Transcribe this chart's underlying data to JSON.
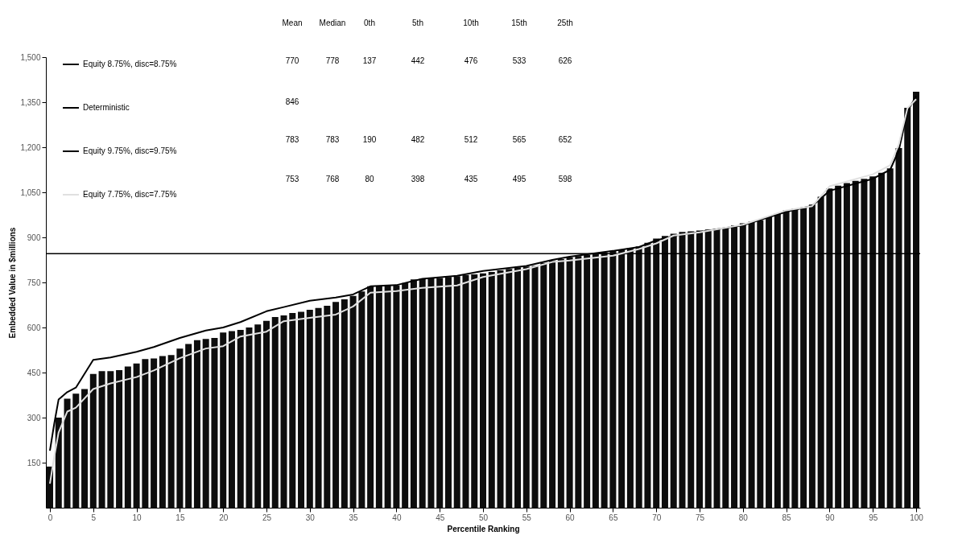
{
  "chart_data": {
    "type": "bar",
    "xlabel": "Percentile Ranking",
    "ylabel": "Embedded Value in $millions",
    "x": [
      0,
      1,
      2,
      3,
      4,
      5,
      6,
      7,
      8,
      9,
      10,
      11,
      12,
      13,
      14,
      15,
      16,
      17,
      18,
      19,
      20,
      21,
      22,
      23,
      24,
      25,
      26,
      27,
      28,
      29,
      30,
      31,
      32,
      33,
      34,
      35,
      36,
      37,
      38,
      39,
      40,
      41,
      42,
      43,
      44,
      45,
      46,
      47,
      48,
      49,
      50,
      51,
      52,
      53,
      54,
      55,
      56,
      57,
      58,
      59,
      60,
      61,
      62,
      63,
      64,
      65,
      66,
      67,
      68,
      69,
      70,
      71,
      72,
      73,
      74,
      75,
      76,
      77,
      78,
      79,
      80,
      81,
      82,
      83,
      84,
      85,
      86,
      87,
      88,
      89,
      90,
      91,
      92,
      93,
      94,
      95,
      96,
      97,
      98,
      99,
      100
    ],
    "series": [
      {
        "name": "Equity 8.75%, disc=8.75%",
        "color": "#0d0d0d",
        "values": [
          137,
          300,
          363,
          380,
          395,
          445,
          455,
          455,
          458,
          470,
          480,
          495,
          497,
          505,
          508,
          530,
          545,
          558,
          562,
          565,
          583,
          588,
          592,
          600,
          610,
          622,
          635,
          640,
          648,
          652,
          659,
          665,
          672,
          685,
          694,
          705,
          720,
          737,
          738,
          740,
          740,
          748,
          760,
          762,
          764,
          765,
          768,
          771,
          775,
          777,
          780,
          785,
          790,
          795,
          800,
          803,
          805,
          815,
          823,
          828,
          834,
          838,
          842,
          846,
          850,
          855,
          860,
          865,
          870,
          882,
          896,
          905,
          912,
          918,
          920,
          923,
          926,
          929,
          932,
          940,
          947,
          952,
          957,
          968,
          979,
          990,
          995,
          1000,
          1009,
          1035,
          1063,
          1072,
          1081,
          1088,
          1095,
          1103,
          1115,
          1130,
          1197,
          1331,
          1385
        ]
      },
      {
        "name": "Equity 9.75%, disc=9.75%",
        "type": "line",
        "color": "#000000",
        "x": [
          0,
          0.5,
          1,
          2,
          3,
          5,
          7,
          10,
          12,
          15,
          18,
          20,
          22,
          25,
          27,
          30,
          33,
          35,
          37,
          40,
          43,
          47,
          50,
          55,
          58,
          60,
          65,
          68,
          70,
          72,
          75,
          80,
          85,
          88,
          90,
          95,
          97,
          98,
          99,
          100
        ],
        "values": [
          190,
          280,
          360,
          385,
          400,
          492,
          500,
          519,
          535,
          565,
          590,
          600,
          618,
          654,
          668,
          689,
          700,
          710,
          737,
          741,
          762,
          772,
          788,
          805,
          825,
          836,
          855,
          868,
          890,
          905,
          918,
          940,
          985,
          1005,
          1055,
          1095,
          1125,
          1190,
          1320,
          1370
        ]
      },
      {
        "name": "Equity 7.75%, disc=7.75%",
        "type": "line",
        "color": "#e0e0e0",
        "x": [
          0,
          0.5,
          1,
          2,
          3,
          5,
          7,
          10,
          12,
          15,
          18,
          20,
          22,
          25,
          27,
          30,
          33,
          35,
          37,
          40,
          43,
          47,
          50,
          55,
          58,
          60,
          65,
          68,
          70,
          72,
          75,
          80,
          85,
          88,
          90,
          95,
          97,
          98,
          99,
          100
        ],
        "values": [
          80,
          170,
          250,
          320,
          333,
          395,
          414,
          435,
          457,
          498,
          530,
          538,
          570,
          586,
          621,
          632,
          643,
          670,
          716,
          721,
          732,
          740,
          768,
          794,
          818,
          823,
          839,
          861,
          880,
          906,
          917,
          942,
          990,
          1004,
          1070,
          1110,
          1140,
          1210,
          1330,
          1360
        ]
      }
    ],
    "ref_lines": [
      {
        "axis": "y",
        "value": 846,
        "label": "Deterministic",
        "color": "#000000"
      }
    ],
    "xlim": [
      0,
      100
    ],
    "xticks": [
      0,
      5,
      10,
      15,
      20,
      25,
      30,
      35,
      40,
      45,
      50,
      55,
      60,
      65,
      70,
      75,
      80,
      85,
      90,
      95,
      100
    ],
    "ylim": [
      0,
      1500
    ],
    "yticks": [
      {
        "value": 150,
        "label": "150"
      },
      {
        "value": 300,
        "label": "300"
      },
      {
        "value": 450,
        "label": "450"
      },
      {
        "value": 600,
        "label": "600"
      },
      {
        "value": 750,
        "label": "750"
      },
      {
        "value": 900,
        "label": "900"
      },
      {
        "value": 1050,
        "label": "1,050"
      },
      {
        "value": 1200,
        "label": "1,200"
      },
      {
        "value": 1350,
        "label": "1,350"
      },
      {
        "value": 1500,
        "label": "1,500"
      }
    ],
    "legend": "top left",
    "annotations": [
      "Mean",
      "Median",
      "0th",
      "5th",
      "10th",
      "15th",
      "25th",
      "770",
      "778",
      "137",
      "442",
      "476",
      "533",
      "626",
      "846",
      "783",
      "783",
      "190",
      "482",
      "512",
      "565",
      "652",
      "753",
      "768",
      "80",
      "398",
      "435",
      "495",
      "598"
    ]
  }
}
